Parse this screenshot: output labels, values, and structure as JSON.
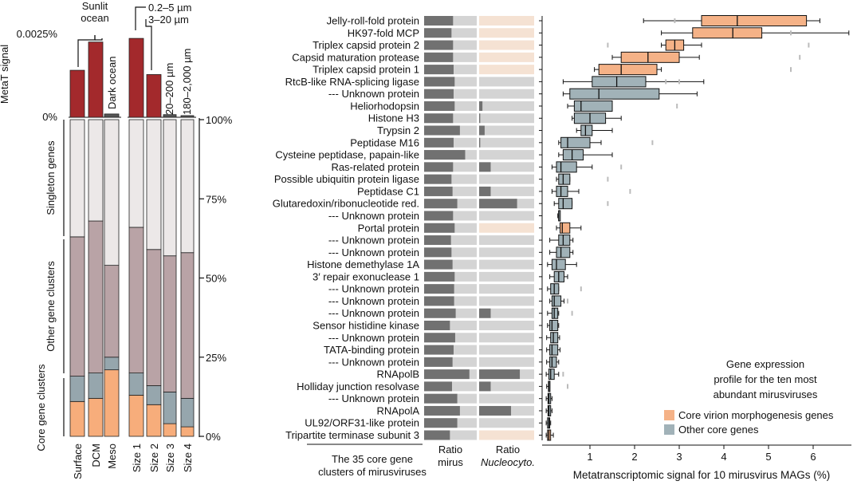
{
  "panel_a": {
    "sunlit_label": [
      "Sunlit",
      "ocean"
    ],
    "dark_label": "Dark ocean",
    "size_labels": {
      "size1": "0.2–5 µm",
      "size2": "3–20 µm",
      "size3": "20–200 µm",
      "size4": "180–2,000 µm"
    },
    "metaT_axis_label": "MetaT signal",
    "metaT_ticks": [
      "0.0025%",
      "0%"
    ],
    "pct_ticks": [
      "100%",
      "75%",
      "50%",
      "25%",
      "0%"
    ],
    "brackets": [
      "Singleton genes",
      "Other gene clusters",
      "Core gene clusters"
    ],
    "samples": [
      "Surface",
      "DCM",
      "Meso",
      "Size 1",
      "Size 2",
      "Size 3",
      "Size 4"
    ]
  },
  "panel_b": {
    "ratio_mirus_label": [
      "Ratio",
      "mirus"
    ],
    "ratio_nucleo_label": [
      "Ratio",
      "Nucleocyto."
    ],
    "group_label": [
      "The 35 core gene",
      "clusters of mirusviruses"
    ],
    "xlabel": "Metatranscriptomic signal for 10 mirusvirus MAGs (%)",
    "x_ticks": [
      "1",
      "2",
      "3",
      "4",
      "5",
      "6"
    ],
    "legend_title": [
      "Gene expression",
      "profile for the ten most",
      "abundant mirusviruses"
    ],
    "legend_items": [
      "Core virion morphogenesis genes",
      "Other core genes"
    ]
  },
  "colors": {
    "red": "#a3292c",
    "rose": "#b9a3a6",
    "light": "#ece8e8",
    "core_blue": "#96a6ad",
    "core_orange": "#f7ad7b",
    "box_orange": "#f5b287",
    "box_blue": "#a1b2b8",
    "ratio_dark": "#717171",
    "ratio_light": "#d4d4d4",
    "ratio_beige": "#f5e2d3"
  },
  "chart_data": [
    {
      "type": "bar",
      "categories": [
        "Surface",
        "DCM",
        "Meso",
        "Size 1",
        "Size 2",
        "Size 3",
        "Size 4"
      ],
      "ylabel": "MetaT signal",
      "ylim": [
        0,
        0.0025
      ],
      "values": [
        0.00143,
        0.00229,
        0.0001,
        0.0024,
        0.0013,
        8e-05,
        5e-05
      ]
    },
    {
      "type": "bar",
      "stacked": true,
      "categories": [
        "Surface",
        "DCM",
        "Meso",
        "Size 1",
        "Size 2",
        "Size 3",
        "Size 4"
      ],
      "ylim": [
        0,
        100
      ],
      "series": [
        {
          "name": "Core gene clusters",
          "values": [
            11,
            12,
            21,
            13,
            10,
            4,
            3
          ]
        },
        {
          "name": "Core gene clusters",
          "values": [
            8,
            8,
            4,
            7,
            6,
            10,
            9
          ]
        },
        {
          "name": "Other gene clusters",
          "values": [
            44,
            48,
            29,
            46,
            43,
            43,
            46
          ]
        },
        {
          "name": "Singleton genes",
          "values": [
            37,
            32,
            46,
            34,
            41,
            43,
            42
          ]
        }
      ]
    },
    {
      "type": "box",
      "xlabel": "Metatranscriptomic signal for 10 mirusvirus MAGs (%)",
      "xlim": [
        0,
        7
      ],
      "categories": [
        "Jelly-roll-fold protein",
        "HK97-fold MCP",
        "Triplex capsid protein 2",
        "Capsid maturation protease",
        "Triplex capsid protein 1",
        "RtcB-like RNA-splicing ligase",
        "--- Unknown protein",
        "Heliorhodopsin",
        "Histone H3",
        "Trypsin 2",
        "Peptidase M16",
        "Cysteine peptidase, papain-like",
        "Ras-related protein",
        "Possible ubiquitin protein ligase",
        "Peptidase C1",
        "Glutaredoxin/ribonucleotide red.",
        "--- Unknown protein",
        "Portal protein",
        "--- Unknown protein",
        "--- Unknown protein",
        "Histone demethylase 1A",
        "3′ repair exonuclease 1",
        "--- Unknown protein",
        "--- Unknown protein",
        "--- Unknown protein",
        "Sensor histidine kinase",
        "--- Unknown protein",
        "TATA-binding protein",
        "--- Unknown protein",
        "RNApolB",
        "Holliday junction resolvase",
        "--- Unknown protein",
        "RNApolA",
        "UL92/ORF31-like protein",
        "Tripartite terminase subunit 3"
      ],
      "morphogenesis": [
        true,
        true,
        true,
        true,
        true,
        false,
        false,
        false,
        false,
        false,
        false,
        false,
        false,
        false,
        false,
        false,
        false,
        true,
        false,
        false,
        false,
        false,
        false,
        false,
        false,
        false,
        false,
        false,
        false,
        false,
        false,
        false,
        false,
        false,
        true
      ],
      "whisker_low": [
        2.2,
        2.6,
        2.6,
        1.5,
        1.1,
        0.4,
        0.4,
        0.5,
        0.6,
        0.7,
        0.3,
        0.3,
        0.15,
        0.25,
        0.15,
        0.2,
        0.28,
        0.25,
        0.1,
        0.1,
        0.05,
        0.1,
        0.05,
        0.1,
        0.05,
        0.05,
        0.03,
        0.03,
        0.03,
        0.02,
        0.03,
        0.02,
        0.02,
        0.02,
        0.02
      ],
      "q1": [
        3.5,
        3.3,
        2.7,
        1.7,
        1.2,
        1.05,
        0.55,
        0.65,
        0.65,
        0.8,
        0.35,
        0.4,
        0.25,
        0.3,
        0.25,
        0.3,
        0.3,
        0.33,
        0.3,
        0.25,
        0.15,
        0.2,
        0.12,
        0.15,
        0.15,
        0.1,
        0.12,
        0.1,
        0.1,
        0.08,
        0.07,
        0.06,
        0.06,
        0.05,
        0.05
      ],
      "median": [
        4.3,
        4.2,
        2.9,
        2.3,
        1.7,
        1.6,
        1.2,
        0.8,
        1.0,
        0.9,
        0.5,
        0.6,
        0.35,
        0.4,
        0.35,
        0.4,
        0.3,
        0.38,
        0.4,
        0.35,
        0.25,
        0.3,
        0.2,
        0.2,
        0.2,
        0.15,
        0.18,
        0.15,
        0.15,
        0.12,
        0.08,
        0.08,
        0.08,
        0.08,
        0.08
      ],
      "q3": [
        5.85,
        4.85,
        3.1,
        3.0,
        2.5,
        2.25,
        2.55,
        1.5,
        1.35,
        1.05,
        1.0,
        0.85,
        0.7,
        0.55,
        0.5,
        0.6,
        0.32,
        0.55,
        0.55,
        0.55,
        0.45,
        0.42,
        0.3,
        0.35,
        0.28,
        0.28,
        0.28,
        0.28,
        0.25,
        0.2,
        0.1,
        0.12,
        0.12,
        0.1,
        0.12
      ],
      "whisker_high": [
        6.15,
        6.8,
        3.5,
        3.45,
        2.6,
        3.55,
        3.4,
        1.5,
        1.7,
        1.5,
        1.25,
        1.5,
        1.05,
        0.55,
        0.75,
        0.6,
        0.32,
        0.8,
        0.62,
        0.62,
        0.7,
        0.5,
        0.3,
        0.42,
        0.3,
        0.3,
        0.32,
        0.33,
        0.3,
        0.3,
        0.1,
        0.15,
        0.15,
        0.12,
        0.18
      ],
      "outliers": [
        [
          2.9
        ],
        [
          5.5
        ],
        [
          1.4,
          5.9
        ],
        [
          5.7
        ],
        [
          5.5
        ],
        [
          2.7,
          3.0
        ],
        [],
        [
          2.95
        ],
        [],
        [],
        [
          2.4
        ],
        [],
        [
          1.7
        ],
        [
          1.4
        ],
        [
          1.9
        ],
        [
          1.4
        ],
        [],
        [],
        [],
        [],
        [],
        [],
        [
          0.8
        ],
        [
          0.5
        ],
        [
          0.6
        ],
        [],
        [],
        [],
        [],
        [
          0.4
        ],
        [
          0.5
        ],
        [],
        [],
        [],
        []
      ],
      "ratio_mirus": [
        0.55,
        0.52,
        0.55,
        0.55,
        0.56,
        0.58,
        0.56,
        0.58,
        0.55,
        0.68,
        0.56,
        0.78,
        0.55,
        0.52,
        0.54,
        0.63,
        0.55,
        0.58,
        0.51,
        0.52,
        0.54,
        0.58,
        0.57,
        0.57,
        0.6,
        0.49,
        0.59,
        0.56,
        0.54,
        0.86,
        0.53,
        0.63,
        0.68,
        0.63,
        0.49
      ],
      "ratio_nucleo": [
        0,
        0,
        0,
        0,
        0,
        0,
        0,
        0.06,
        0.02,
        0.1,
        0.02,
        0,
        0.21,
        0,
        0.21,
        0.69,
        0,
        0,
        0,
        0,
        0,
        0,
        0,
        0,
        0.21,
        0,
        0,
        0,
        0,
        0.74,
        0.21,
        0,
        0.58,
        0,
        0
      ]
    }
  ]
}
